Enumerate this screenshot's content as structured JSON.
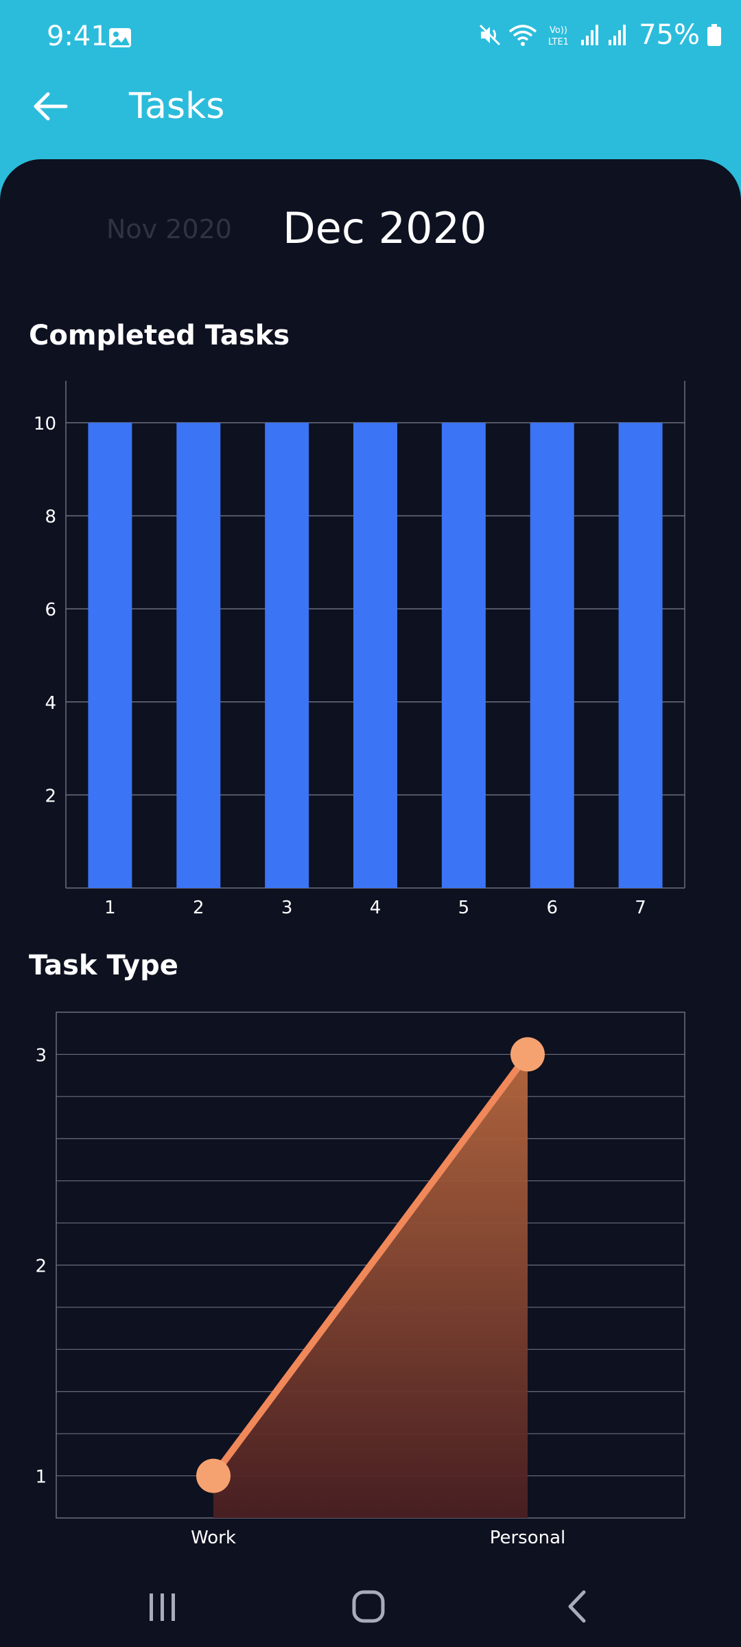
{
  "status_bar": {
    "time": "9:41",
    "battery": "75%",
    "icons": [
      "image-icon",
      "mute-icon",
      "wifi-icon",
      "volte-icon",
      "signal-icon",
      "signal-icon",
      "battery-icon"
    ]
  },
  "app_bar": {
    "title": "Tasks",
    "back_icon": "arrow-left-icon"
  },
  "month_selector": {
    "previous": "Nov 2020",
    "current": "Dec 2020"
  },
  "sections": {
    "completed_title": "Completed Tasks",
    "type_title": "Task Type"
  },
  "colors": {
    "header": "#2cbcdb",
    "background": "#0e1120",
    "bar": "#3b74f4",
    "line": "#f0885a",
    "point": "#f6a270"
  },
  "chart_data": [
    {
      "type": "bar",
      "title": "Completed Tasks",
      "categories": [
        "1",
        "2",
        "3",
        "4",
        "5",
        "6",
        "7"
      ],
      "values": [
        10,
        10,
        10,
        10,
        10,
        10,
        10
      ],
      "ylim": [
        0,
        10.9
      ],
      "yticks": [
        2,
        4,
        6,
        8,
        10
      ],
      "grid": true
    },
    {
      "type": "area",
      "title": "Task Type",
      "categories": [
        "Work",
        "Personal"
      ],
      "values": [
        1,
        3
      ],
      "ylim": [
        0.8,
        3.2
      ],
      "yticks": [
        1,
        2,
        3
      ],
      "grid": true
    }
  ],
  "nav_bar": {
    "icons": [
      "recent-apps-icon",
      "home-icon",
      "back-icon"
    ]
  }
}
